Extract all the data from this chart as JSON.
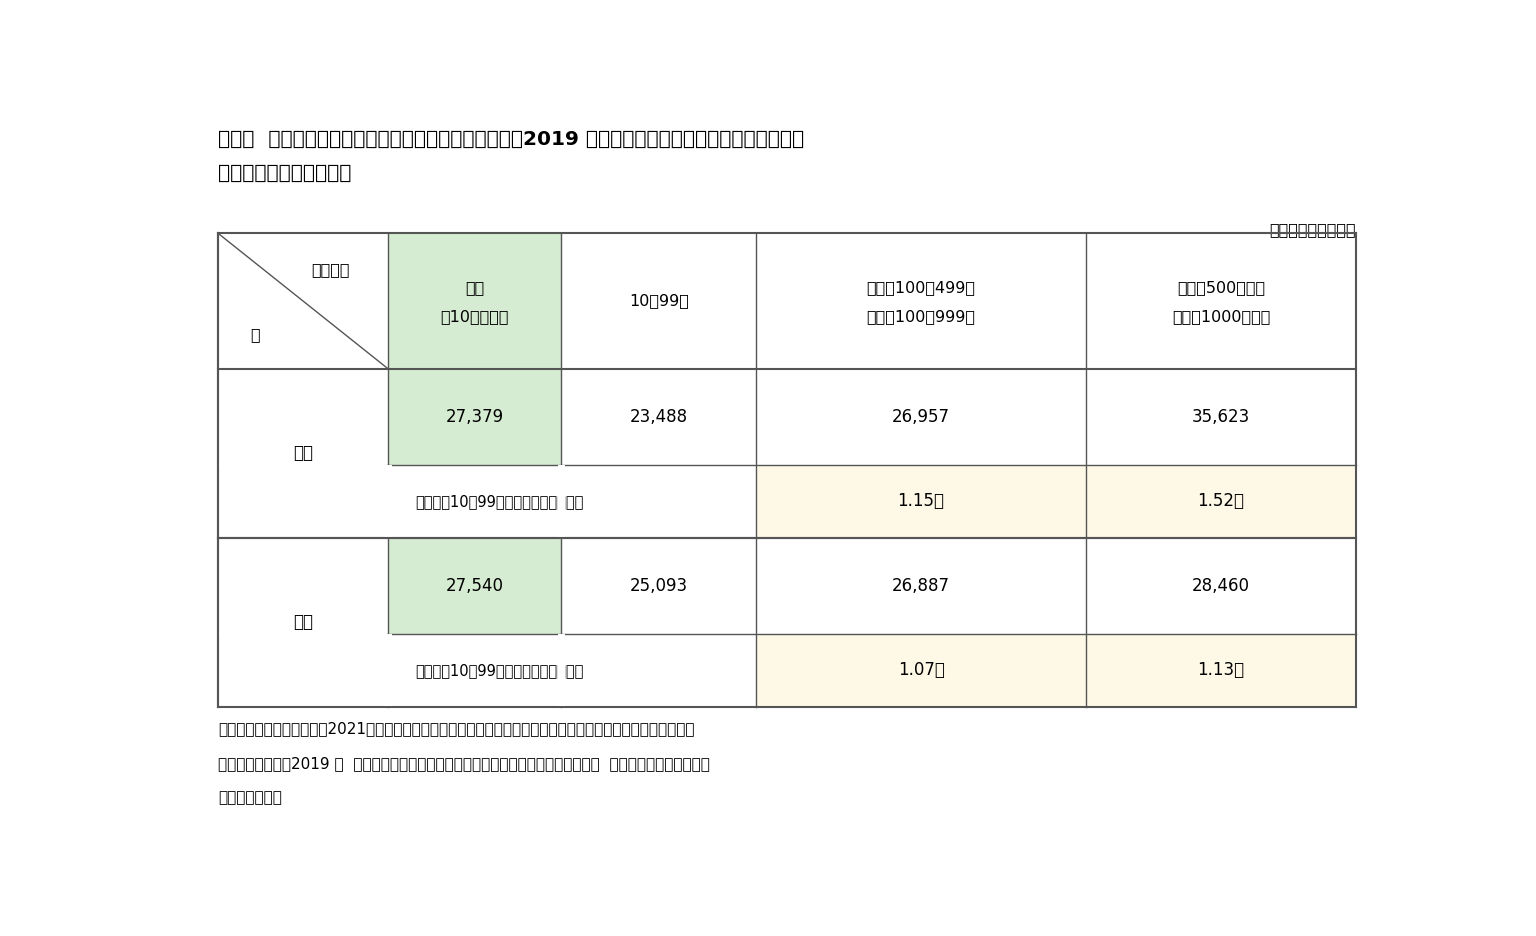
{
  "title_line1": "図表５  日韓の企業規模別大卒初任給（年間賃金総額、2019 年、各年の名目平均賃金をその年の平均",
  "title_line2": "為替レートでドル換算）",
  "unit_label": "単位：アメリカドル",
  "header_row": {
    "col0_top": "従業員数",
    "col0_bottom": "国",
    "col1_line1": "全体",
    "col1_line2": "（10人以上）",
    "col2": "10〜99人",
    "col3_line1": "韓国：100〜499人",
    "col3_line2": "日本：100〜999人",
    "col4_line1": "韓国：500人以上",
    "col4_line2": "日本：1000人以上"
  },
  "korea_row1": {
    "country": "韓国",
    "col1": "27,379",
    "col2": "23,488",
    "col3": "26,957",
    "col4": "35,623"
  },
  "korea_row2": {
    "label": "従業員数10〜99人と比較した賃金水準",
    "col3": "1.15倍",
    "col4": "1.52倍"
  },
  "japan_row1": {
    "country": "日本",
    "col1": "27,540",
    "col2": "25,093",
    "col3": "26,887",
    "col4": "28,460"
  },
  "japan_row2": {
    "label": "従業員数10〜99人と比較した賃金水準",
    "col3": "1.07倍",
    "col4": "1.13倍"
  },
  "footnote_lines": [
    "出所）韓国経営者総協会（2021）「わが国の大卒初任給の分析および韓・日大卒初任給の比較と示唆点」（韓国",
    "は雇用労働部の「2019 年  賃金構造基本統計調査」を、日本は厚生労働省の「令和元年  賃金構造基本統計調査」",
    "を用いて比較）"
  ],
  "bg_color": "#ffffff",
  "colors": {
    "light_green": "#d6ecd2",
    "light_yellow": "#fef9e7",
    "white": "#ffffff",
    "border": "#555555"
  }
}
